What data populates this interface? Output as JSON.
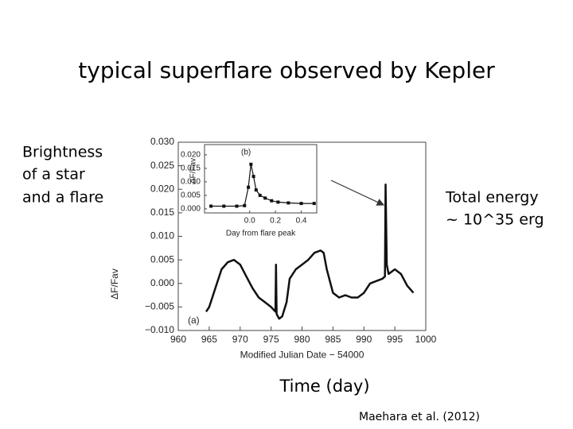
{
  "slide": {
    "title": "typical superflare  observed by Kepler",
    "left_label": [
      "Brightness",
      "of  a star",
      "and  a flare"
    ],
    "right_label": [
      "Total energy",
      "~  10^35 erg"
    ],
    "x_caption": "Time  (day)",
    "citation": "Maehara et al.  (2012)"
  },
  "chart_data": [
    {
      "type": "line",
      "annotation": "(a)",
      "x_label": "Modified Julian Date − 54000",
      "y_label": "ΔF/Fav",
      "color": "#111111",
      "x": [
        964.5,
        965,
        966,
        967,
        968,
        969,
        970,
        971,
        972,
        973,
        974,
        975,
        975.7,
        975.8,
        975.9,
        976.3,
        976.8,
        977.5,
        978,
        979,
        980,
        981,
        982,
        983,
        983.5,
        984,
        985,
        986,
        987,
        988,
        989,
        990,
        991,
        992,
        993,
        993.4,
        993.5,
        993.7,
        994,
        995,
        996,
        997,
        998
      ],
      "values": [
        -0.006,
        -0.005,
        -0.001,
        0.003,
        0.0045,
        0.005,
        0.004,
        0.0015,
        -0.001,
        -0.003,
        -0.004,
        -0.005,
        -0.006,
        0.004,
        -0.0065,
        -0.0075,
        -0.007,
        -0.004,
        0.001,
        0.003,
        0.004,
        0.005,
        0.0065,
        0.007,
        0.0065,
        0.003,
        -0.002,
        -0.003,
        -0.0025,
        -0.003,
        -0.003,
        -0.002,
        0.0,
        0.0005,
        0.001,
        0.0015,
        0.021,
        0.004,
        0.002,
        0.003,
        0.002,
        -0.0005,
        -0.002
      ],
      "xlim": [
        960,
        1000
      ],
      "xticks": [
        960,
        965,
        970,
        975,
        980,
        985,
        990,
        995,
        1000
      ],
      "ylim": [
        -0.01,
        0.03
      ],
      "yticks": [
        {
          "value": -0.01,
          "label": "−0.010"
        },
        {
          "value": -0.005,
          "label": "−0.005"
        },
        {
          "value": 0,
          "label": "0.000"
        },
        0.005,
        {
          "value": 0.01,
          "label": "0.010"
        },
        0.015,
        {
          "value": 0.02,
          "label": "0.020"
        },
        0.025,
        {
          "value": 0.03,
          "label": "0.030"
        }
      ]
    },
    {
      "type": "line",
      "annotation": "(b)",
      "x_label": "Day from flare peak",
      "y_label": "ΔF/Fav",
      "color": "#111111",
      "x": [
        -0.3,
        -0.2,
        -0.1,
        -0.04,
        -0.01,
        0.01,
        0.03,
        0.05,
        0.08,
        0.12,
        0.17,
        0.22,
        0.3,
        0.4,
        0.5
      ],
      "values": [
        0.001,
        0.001,
        0.001,
        0.0012,
        0.008,
        0.0165,
        0.012,
        0.007,
        0.005,
        0.004,
        0.003,
        0.0025,
        0.0022,
        0.002,
        0.002
      ],
      "xlim": [
        -0.35,
        0.52
      ],
      "xticks": [
        {
          "value": 0,
          "label": "0.0"
        },
        0.2,
        0.4
      ],
      "ylim": [
        -0.0015,
        0.0238
      ],
      "yticks": [
        {
          "value": 0,
          "label": "0.000"
        },
        0.005,
        {
          "value": 0.01,
          "label": "0.010"
        },
        0.015,
        {
          "value": 0.02,
          "label": "0.020"
        }
      ]
    }
  ]
}
